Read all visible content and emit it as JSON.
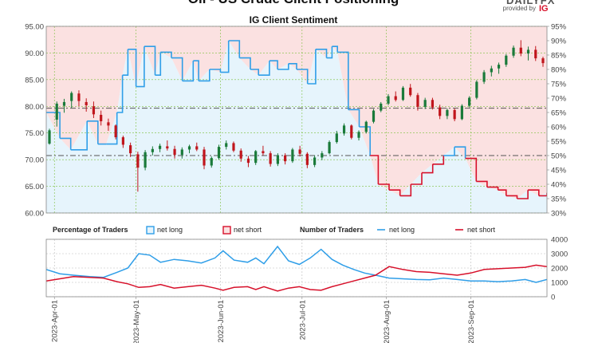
{
  "header": {
    "title": "Oil - US Crude Client Positioning",
    "brand_word": "DAILYFX",
    "provided_by": "provided by",
    "brand_mark": "IG"
  },
  "colors": {
    "net_long_line": "#2f9ee8",
    "net_long_fill": "#e6f4fc",
    "net_short_line": "#d7102a",
    "net_short_fill": "#fbe1e1",
    "candle_up": "#1a7a3a",
    "candle_down": "#c0151c",
    "grid": "#7cbf3c",
    "axis_text": "#444444",
    "dash_line": "#555555"
  },
  "chart_data": [
    {
      "id": "sentiment_price",
      "type": "line+candlestick",
      "title": "IG Client Sentiment",
      "x_range": [
        "2023-03-29",
        "2023-09-29"
      ],
      "y_left": {
        "range": [
          60,
          95
        ],
        "ticks": [
          "60.00",
          "65.00",
          "70.00",
          "75.00",
          "80.00",
          "85.00",
          "90.00",
          "95.00"
        ]
      },
      "y_right": {
        "range": [
          30,
          95
        ],
        "ticks": [
          "30%",
          "35%",
          "40%",
          "45%",
          "50%",
          "55%",
          "60%",
          "65%",
          "70%",
          "75%",
          "80%",
          "85%",
          "90%",
          "95%"
        ]
      },
      "reference_lines": [
        {
          "axis": "right",
          "value": 50
        },
        {
          "axis": "right",
          "value": 66.5
        }
      ],
      "grid": true,
      "net_long_pct": {
        "x": [
          "2023-03-29",
          "2023-04-03",
          "2023-04-07",
          "2023-04-13",
          "2023-04-17",
          "2023-04-20",
          "2023-04-24",
          "2023-04-26",
          "2023-04-28",
          "2023-05-01",
          "2023-05-04",
          "2023-05-08",
          "2023-05-10",
          "2023-05-14",
          "2023-05-18",
          "2023-05-22",
          "2023-05-24",
          "2023-05-28",
          "2023-06-01",
          "2023-06-04",
          "2023-06-08",
          "2023-06-12",
          "2023-06-15",
          "2023-06-19",
          "2023-06-22",
          "2023-06-26",
          "2023-06-29",
          "2023-07-03",
          "2023-07-06",
          "2023-07-10",
          "2023-07-12",
          "2023-07-14",
          "2023-07-18",
          "2023-07-22",
          "2023-07-26",
          "2023-07-29",
          "2023-08-02",
          "2023-08-06",
          "2023-08-10",
          "2023-08-14",
          "2023-08-18",
          "2023-08-22",
          "2023-08-26",
          "2023-08-30",
          "2023-09-03",
          "2023-09-07",
          "2023-09-11",
          "2023-09-14",
          "2023-09-18",
          "2023-09-22",
          "2023-09-26",
          "2023-09-29"
        ],
        "values": [
          65,
          56,
          52,
          62,
          54,
          54,
          65,
          78,
          87,
          74,
          88,
          78,
          86,
          84,
          76,
          83,
          76,
          80,
          79,
          90,
          84,
          80,
          78,
          83,
          80,
          82,
          80,
          75,
          87,
          84,
          88,
          86,
          66,
          60,
          50,
          40,
          38,
          36,
          40,
          44,
          47,
          50,
          53,
          49,
          41,
          39,
          38,
          36,
          35,
          38,
          36,
          37
        ]
      },
      "price_ohlc": [
        [
          73.0,
          75.8,
          72.8,
          75.5
        ],
        [
          77.5,
          80.9,
          76.2,
          80.5
        ],
        [
          80.1,
          81.4,
          78.8,
          80.8
        ],
        [
          81.0,
          82.8,
          79.7,
          82.5
        ],
        [
          82.4,
          83.0,
          80.0,
          81.0
        ],
        [
          80.8,
          81.5,
          79.0,
          80.2
        ],
        [
          80.0,
          80.9,
          77.8,
          78.5
        ],
        [
          78.4,
          79.2,
          76.4,
          77.2
        ],
        [
          77.0,
          77.7,
          75.4,
          76.4
        ],
        [
          76.4,
          76.6,
          73.8,
          74.2
        ],
        [
          74.2,
          74.5,
          72.2,
          72.8
        ],
        [
          72.7,
          73.2,
          70.5,
          71.2
        ],
        [
          71.0,
          71.5,
          64.0,
          68.5
        ],
        [
          68.5,
          71.8,
          68.0,
          71.4
        ],
        [
          71.4,
          72.5,
          70.8,
          72.0
        ],
        [
          72.0,
          73.0,
          71.4,
          72.6
        ],
        [
          72.5,
          73.6,
          71.7,
          72.1
        ],
        [
          72.0,
          72.6,
          70.2,
          70.9
        ],
        [
          70.9,
          72.3,
          70.2,
          71.9
        ],
        [
          71.9,
          72.8,
          71.2,
          72.5
        ],
        [
          72.5,
          73.2,
          71.6,
          71.9
        ],
        [
          71.9,
          72.4,
          68.2,
          68.9
        ],
        [
          68.9,
          70.6,
          68.5,
          70.3
        ],
        [
          70.3,
          72.8,
          70.0,
          72.4
        ],
        [
          72.4,
          73.6,
          71.9,
          73.1
        ],
        [
          73.1,
          73.4,
          71.4,
          71.7
        ],
        [
          71.7,
          72.1,
          69.6,
          70.2
        ],
        [
          70.2,
          70.7,
          68.6,
          69.4
        ],
        [
          69.4,
          71.8,
          69.0,
          71.6
        ],
        [
          71.6,
          72.6,
          70.8,
          71.2
        ],
        [
          71.2,
          71.6,
          68.7,
          69.2
        ],
        [
          69.2,
          71.2,
          68.8,
          70.8
        ],
        [
          70.8,
          71.2,
          69.1,
          69.7
        ],
        [
          69.7,
          72.2,
          69.4,
          71.9
        ],
        [
          71.9,
          72.6,
          70.6,
          71.1
        ],
        [
          71.1,
          71.4,
          68.4,
          69.0
        ],
        [
          69.0,
          70.8,
          68.6,
          70.4
        ],
        [
          70.4,
          71.6,
          69.9,
          71.2
        ],
        [
          71.2,
          73.6,
          71.0,
          73.3
        ],
        [
          73.3,
          75.4,
          73.0,
          74.9
        ],
        [
          74.9,
          76.8,
          74.5,
          76.4
        ],
        [
          76.4,
          76.6,
          73.8,
          74.1
        ],
        [
          74.1,
          75.5,
          73.6,
          75.2
        ],
        [
          75.2,
          77.3,
          74.9,
          77.1
        ],
        [
          77.1,
          79.5,
          76.8,
          79.2
        ],
        [
          79.2,
          80.8,
          78.9,
          80.5
        ],
        [
          80.5,
          82.3,
          80.2,
          81.9
        ],
        [
          81.9,
          82.8,
          80.9,
          81.2
        ],
        [
          81.2,
          83.8,
          81.0,
          83.5
        ],
        [
          83.5,
          84.2,
          81.8,
          82.1
        ],
        [
          82.1,
          82.5,
          79.2,
          79.9
        ],
        [
          79.9,
          81.6,
          79.5,
          81.2
        ],
        [
          81.2,
          81.6,
          79.4,
          79.8
        ],
        [
          79.8,
          80.3,
          77.6,
          78.2
        ],
        [
          78.2,
          79.6,
          77.6,
          79.3
        ],
        [
          79.3,
          79.6,
          77.2,
          77.6
        ],
        [
          77.6,
          80.4,
          77.4,
          80.1
        ],
        [
          80.1,
          81.9,
          79.8,
          81.6
        ],
        [
          81.6,
          84.9,
          81.3,
          84.6
        ],
        [
          84.6,
          86.8,
          84.2,
          86.4
        ],
        [
          86.4,
          87.6,
          85.6,
          87.1
        ],
        [
          87.1,
          88.2,
          86.1,
          87.8
        ],
        [
          87.8,
          89.8,
          87.4,
          89.5
        ],
        [
          89.5,
          91.4,
          89.1,
          91.0
        ],
        [
          91.0,
          92.4,
          89.4,
          89.9
        ],
        [
          89.9,
          91.2,
          88.6,
          90.6
        ],
        [
          90.6,
          91.3,
          88.5,
          89.0
        ],
        [
          89.0,
          89.3,
          87.4,
          88.1
        ]
      ]
    },
    {
      "id": "positioning",
      "type": "line",
      "legend": [
        {
          "label": "Percentage of Traders",
          "kind": "heading"
        },
        {
          "label": "net long",
          "kind": "box",
          "color": "#2f9ee8"
        },
        {
          "label": "net short",
          "kind": "box",
          "color": "#d7102a"
        },
        {
          "label": "Number of Traders",
          "kind": "heading"
        },
        {
          "label": "net long",
          "kind": "line",
          "color": "#2f9ee8"
        },
        {
          "label": "net short",
          "kind": "line",
          "color": "#d7102a"
        }
      ],
      "y_right": {
        "range": [
          0,
          4000
        ],
        "ticks": [
          "0",
          "1000",
          "2000",
          "3000",
          "4000"
        ]
      },
      "x_ticks": [
        "2023-Apr-01",
        "2023-May-01",
        "2023-Jun-01",
        "2023-Jul-01",
        "2023-Aug-01",
        "2023-Sep-01"
      ],
      "x_tick_dates": [
        "2023-04-01",
        "2023-05-01",
        "2023-06-01",
        "2023-07-01",
        "2023-08-01",
        "2023-09-01"
      ],
      "series": [
        {
          "name": "net long",
          "x": [
            "2023-03-29",
            "2023-04-03",
            "2023-04-08",
            "2023-04-14",
            "2023-04-19",
            "2023-04-24",
            "2023-04-28",
            "2023-05-02",
            "2023-05-06",
            "2023-05-10",
            "2023-05-15",
            "2023-05-20",
            "2023-05-25",
            "2023-05-30",
            "2023-06-02",
            "2023-06-06",
            "2023-06-11",
            "2023-06-14",
            "2023-06-17",
            "2023-06-22",
            "2023-06-26",
            "2023-06-30",
            "2023-07-04",
            "2023-07-08",
            "2023-07-12",
            "2023-07-16",
            "2023-07-20",
            "2023-07-24",
            "2023-07-28",
            "2023-08-02",
            "2023-08-07",
            "2023-08-12",
            "2023-08-17",
            "2023-08-22",
            "2023-08-27",
            "2023-09-01",
            "2023-09-06",
            "2023-09-11",
            "2023-09-16",
            "2023-09-21",
            "2023-09-25",
            "2023-09-29"
          ],
          "values": [
            1900,
            1600,
            1500,
            1400,
            1350,
            1700,
            2000,
            3000,
            2900,
            2400,
            2600,
            2500,
            2350,
            2700,
            3200,
            2550,
            2400,
            2700,
            2300,
            3500,
            2500,
            2250,
            2700,
            3300,
            2600,
            2200,
            1900,
            1650,
            1500,
            1300,
            1250,
            1200,
            1180,
            1300,
            1200,
            1100,
            1100,
            1050,
            1100,
            1200,
            1000,
            1200
          ]
        },
        {
          "name": "net short",
          "x": [
            "2023-03-29",
            "2023-04-03",
            "2023-04-08",
            "2023-04-14",
            "2023-04-19",
            "2023-04-24",
            "2023-04-28",
            "2023-05-02",
            "2023-05-06",
            "2023-05-10",
            "2023-05-15",
            "2023-05-20",
            "2023-05-25",
            "2023-05-30",
            "2023-06-02",
            "2023-06-06",
            "2023-06-11",
            "2023-06-14",
            "2023-06-17",
            "2023-06-22",
            "2023-06-26",
            "2023-06-30",
            "2023-07-04",
            "2023-07-08",
            "2023-07-12",
            "2023-07-16",
            "2023-07-20",
            "2023-07-24",
            "2023-07-28",
            "2023-08-02",
            "2023-08-07",
            "2023-08-12",
            "2023-08-17",
            "2023-08-22",
            "2023-08-27",
            "2023-09-01",
            "2023-09-06",
            "2023-09-11",
            "2023-09-16",
            "2023-09-21",
            "2023-09-25",
            "2023-09-29"
          ],
          "values": [
            1100,
            1250,
            1400,
            1350,
            1300,
            1050,
            900,
            650,
            700,
            850,
            600,
            700,
            800,
            600,
            450,
            650,
            700,
            500,
            700,
            400,
            600,
            700,
            500,
            450,
            700,
            900,
            1100,
            1300,
            1500,
            2100,
            1900,
            1750,
            1700,
            1600,
            1500,
            1650,
            1900,
            1950,
            2000,
            2050,
            2200,
            2100
          ]
        }
      ]
    }
  ]
}
